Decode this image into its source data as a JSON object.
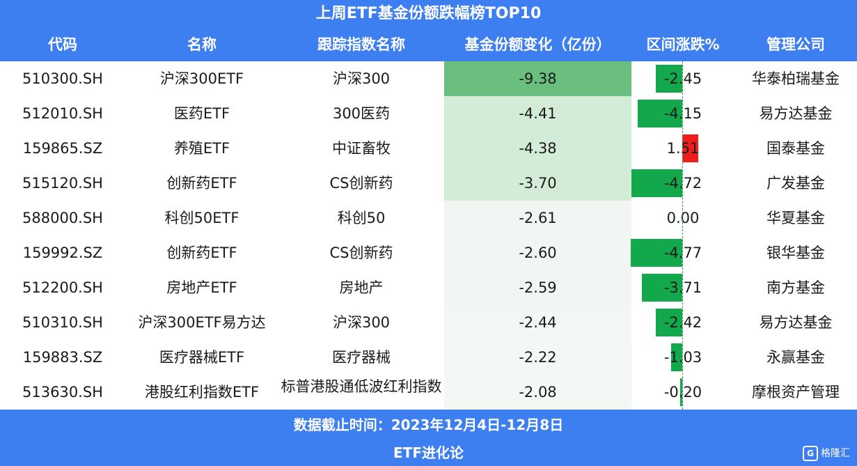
{
  "chart_data": {
    "type": "table",
    "title": "上周ETF基金份额跌幅榜TOP10",
    "columns": [
      "代码",
      "名称",
      "跟踪指数名称",
      "基金份额变化（亿份）",
      "区间涨跌%",
      "管理公司"
    ],
    "rows": [
      {
        "code": "510300.SH",
        "name": "沪深300ETF",
        "index": "沪深300",
        "share_change": -9.38,
        "share_change_text": "-9.38",
        "pct": -2.45,
        "pct_text": "-2.45",
        "company": "华泰柏瑞基金"
      },
      {
        "code": "512010.SH",
        "name": "医药ETF",
        "index": "300医药",
        "share_change": -4.41,
        "share_change_text": "-4.41",
        "pct": -4.15,
        "pct_text": "-4.15",
        "company": "易方达基金"
      },
      {
        "code": "159865.SZ",
        "name": "养殖ETF",
        "index": "中证畜牧",
        "share_change": -4.38,
        "share_change_text": "-4.38",
        "pct": 1.51,
        "pct_text": "1.51",
        "company": "国泰基金"
      },
      {
        "code": "515120.SH",
        "name": "创新药ETF",
        "index": "CS创新药",
        "share_change": -3.7,
        "share_change_text": "-3.70",
        "pct": -4.72,
        "pct_text": "-4.72",
        "company": "广发基金"
      },
      {
        "code": "588000.SH",
        "name": "科创50ETF",
        "index": "科创50",
        "share_change": -2.61,
        "share_change_text": "-2.61",
        "pct": 0.0,
        "pct_text": "0.00",
        "company": "华夏基金"
      },
      {
        "code": "159992.SZ",
        "name": "创新药ETF",
        "index": "CS创新药",
        "share_change": -2.6,
        "share_change_text": "-2.60",
        "pct": -4.77,
        "pct_text": "-4.77",
        "company": "银华基金"
      },
      {
        "code": "512200.SH",
        "name": "房地产ETF",
        "index": "房地产",
        "share_change": -2.59,
        "share_change_text": "-2.59",
        "pct": -3.71,
        "pct_text": "-3.71",
        "company": "南方基金"
      },
      {
        "code": "510310.SH",
        "name": "沪深300ETF易方达",
        "index": "沪深300",
        "share_change": -2.44,
        "share_change_text": "-2.44",
        "pct": -2.42,
        "pct_text": "-2.42",
        "company": "易方达基金"
      },
      {
        "code": "159883.SZ",
        "name": "医疗器械ETF",
        "index": "医疗器械",
        "share_change": -2.22,
        "share_change_text": "-2.22",
        "pct": -1.03,
        "pct_text": "-1.03",
        "company": "永赢基金"
      },
      {
        "code": "513630.SH",
        "name": "港股红利指数ETF",
        "index": "标普港股通低波红利指数",
        "share_change": -2.08,
        "share_change_text": "-2.08",
        "pct": -0.2,
        "pct_text": "-0.20",
        "company": "摩根资产管理"
      }
    ],
    "colors": {
      "header_bg": "#3d7ef0",
      "share_strong": "#6abf7f",
      "share_light": "#d3ecd8",
      "pct_negative": "#13a84c",
      "pct_positive": "#ee1c1c"
    }
  },
  "footer": {
    "date_range": "数据截止时间：2023年12月4日-12月8日",
    "source": "ETF进化论",
    "watermark": "格隆汇"
  }
}
